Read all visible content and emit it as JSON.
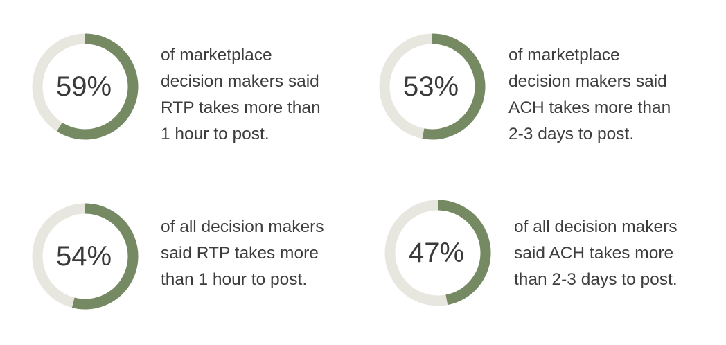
{
  "chart_data": [
    {
      "type": "pie",
      "value": 59,
      "label": "59%",
      "caption_lines": [
        "of marketplace",
        "decision makers said",
        "RTP takes more than",
        "1 hour to post."
      ]
    },
    {
      "type": "pie",
      "value": 53,
      "label": "53%",
      "caption_lines": [
        "of marketplace",
        "decision makers said",
        "ACH takes more than",
        "2-3 days to post."
      ]
    },
    {
      "type": "pie",
      "value": 54,
      "label": "54%",
      "caption_lines": [
        "of all decision makers",
        "said RTP takes more",
        "than 1 hour to post."
      ]
    },
    {
      "type": "pie",
      "value": 47,
      "label": "47%",
      "caption_lines": [
        "of all decision makers",
        "said ACH takes more",
        "than 2-3 days to post."
      ]
    }
  ],
  "colors": {
    "filled": "#758a63",
    "track": "#e8e7df",
    "text": "#3d3d3d"
  }
}
